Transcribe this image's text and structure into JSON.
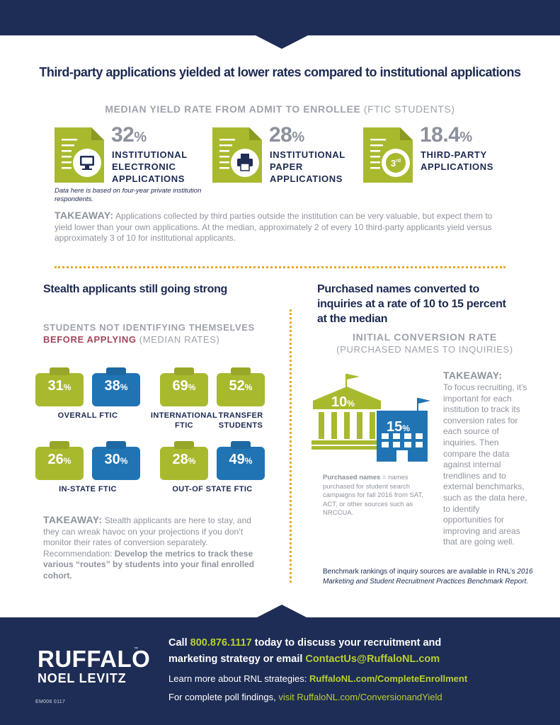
{
  "title": "Third-party applications yielded at lower rates compared to institutional applications",
  "median_yield": {
    "heading_bold": "MEDIAN YIELD RATE FROM ADMIT TO ENROLLEE",
    "heading_light": "(FTIC STUDENTS)",
    "items": [
      {
        "value": "32",
        "unit": "%",
        "label_lines": [
          "INSTITUTIONAL",
          "ELECTRONIC",
          "APPLICATIONS"
        ],
        "icon": "document-monitor-icon"
      },
      {
        "value": "28",
        "unit": "%",
        "label_lines": [
          "INSTITUTIONAL",
          "PAPER",
          "APPLICATIONS"
        ],
        "icon": "document-printer-icon"
      },
      {
        "value": "18.4",
        "unit": "%",
        "label_lines": [
          "THIRD-PARTY",
          "APPLICATIONS"
        ],
        "icon": "document-3rd-badge-icon",
        "badge_num": "3",
        "badge_sup": "rd"
      }
    ],
    "footnote": "Data here is based on four-year private institution respondents.",
    "takeaway_label": "TAKEAWAY:",
    "takeaway_text": "Applications collected by third parties outside the institution can be very valuable, but expect them to yield lower than your own applications. At the median, approximately 2 of every 10 third-party applicants yield versus approximately 3 of 10 for institutional applicants."
  },
  "stealth": {
    "title": "Stealth applicants still going strong",
    "heading_line1": "STUDENTS NOT IDENTIFYING THEMSELVES",
    "heading_red": "BEFORE APPLYING",
    "heading_light": "(MEDIAN RATES)",
    "groups": [
      {
        "label_lines": [
          "OVERALL FTIC"
        ],
        "values": [
          {
            "v": "31",
            "u": "%",
            "color": "#a9b92e"
          },
          {
            "v": "38",
            "u": "%",
            "color": "#2074b3"
          }
        ]
      },
      {
        "label_lines": [
          "INTERNATIONAL",
          "FTIC"
        ],
        "values": [
          {
            "v": "69",
            "u": "%",
            "color": "#a9b92e"
          }
        ]
      },
      {
        "label_lines": [
          "TRANSFER",
          "STUDENTS"
        ],
        "values": [
          {
            "v": "52",
            "u": "%",
            "color": "#a9b92e"
          }
        ]
      },
      {
        "label_lines": [
          "IN-STATE FTIC"
        ],
        "values": [
          {
            "v": "26",
            "u": "%",
            "color": "#a9b92e"
          },
          {
            "v": "30",
            "u": "%",
            "color": "#2074b3"
          }
        ]
      },
      {
        "label_lines": [
          "OUT-OF STATE FTIC"
        ],
        "values": [
          {
            "v": "28",
            "u": "%",
            "color": "#a9b92e"
          },
          {
            "v": "49",
            "u": "%",
            "color": "#2074b3"
          }
        ]
      }
    ],
    "takeaway_label": "TAKEAWAY:",
    "takeaway_text": "Stealth applicants are here to stay, and they can wreak havoc on your projections if you don’t monitor their rates of conversion separately. Recommendation:",
    "takeaway_bold": "Develop the metrics to track these various “routes” by students into your final enrolled cohort."
  },
  "purchased": {
    "title_lines": [
      "Purchased names converted to",
      "inquiries at a rate of 10 to 15 percent",
      "at the median"
    ],
    "heading": "INITIAL CONVERSION RATE",
    "subheading": "(PURCHASED NAMES TO INQUIRIES)",
    "building_values": [
      {
        "v": "10",
        "u": "%",
        "color": "#a9b92e"
      },
      {
        "v": "15",
        "u": "%",
        "color": "#2074b3"
      }
    ],
    "takeaway_label": "TAKEAWAY:",
    "takeaway_text": "To focus recruiting, it’s important for each institution to track its conversion rates for each source of inquiries. Then compare the data against internal trendlines and to external benchmarks, such as the data here, to identify opportunities for improving and areas that are going well.",
    "note_bold": "Purchased names",
    "note_text": " = names purchased for student search campaigns for fall 2016 from SAT, ACT, or other sources such as NRCCUA.",
    "bench_text": "Benchmark rankings of inquiry sources are available in RNL’s ",
    "bench_italic": "2016 Marketing and Student Recruitment Practices Benchmark Report",
    "bench_end": "."
  },
  "footer": {
    "logo_line1": "RUFFALO",
    "logo_line2": "NOEL LEVITZ",
    "logo_tm": "™",
    "code": "EM006  0117",
    "cta_call": "Call ",
    "phone": "800.876.1117",
    "cta_mid": " today to discuss your recruitment and",
    "cta_line2": "marketing strategy or email ",
    "email": "ContactUs@RuffaloNL.com",
    "learn_text": "Learn more about RNL strategies: ",
    "learn_link": "RuffaloNL.com/CompleteEnrollment",
    "poll_text": "For complete poll findings, ",
    "poll_link": "visit RuffaloNL.com/ConversionandYield"
  },
  "colors": {
    "navy": "#1e2d55",
    "lime": "#a9b92e",
    "blue": "#2074b3",
    "gold_dots": "#e9a82a",
    "stealth_red": "#a4465c",
    "gray_text": "#8f949d"
  }
}
